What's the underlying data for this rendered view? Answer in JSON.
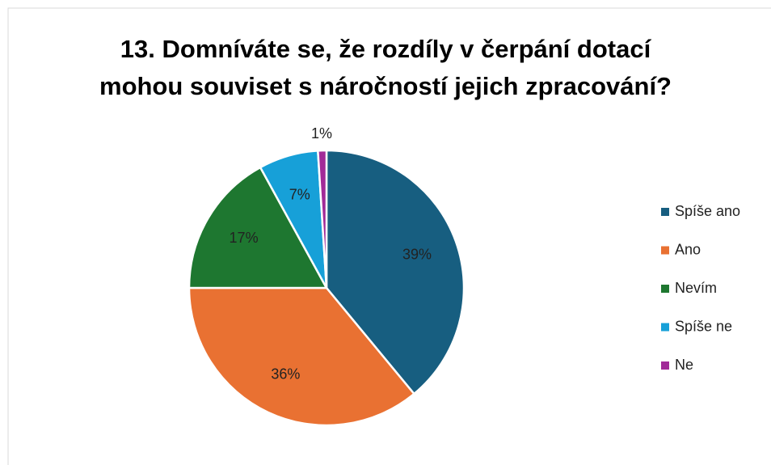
{
  "chart_data": {
    "type": "pie",
    "title": "13. Domníváte se, že rozdíly v čerpání dotací mohou souviset s náročností jejich zpracování?",
    "categories": [
      "Spíše ano",
      "Ano",
      "Nevím",
      "Spíše ne",
      "Ne"
    ],
    "values": [
      39,
      36,
      17,
      7,
      1
    ],
    "value_labels": [
      "39%",
      "36%",
      "17%",
      "7%",
      "1%"
    ],
    "colors": [
      "#175e80",
      "#e97132",
      "#1e7730",
      "#17a0d8",
      "#a12a98"
    ],
    "legend": "right"
  }
}
